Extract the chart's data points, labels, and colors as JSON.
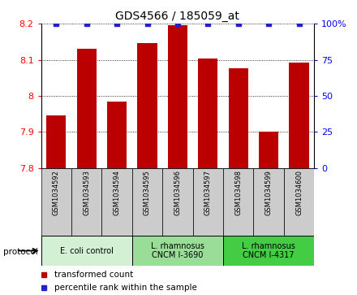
{
  "title": "GDS4566 / 185059_at",
  "samples": [
    "GSM1034592",
    "GSM1034593",
    "GSM1034594",
    "GSM1034595",
    "GSM1034596",
    "GSM1034597",
    "GSM1034598",
    "GSM1034599",
    "GSM1034600"
  ],
  "bar_values": [
    7.945,
    8.13,
    7.985,
    8.145,
    8.195,
    8.103,
    8.077,
    7.902,
    8.093
  ],
  "ylim": [
    7.8,
    8.2
  ],
  "yticks_left": [
    7.8,
    7.9,
    8.0,
    8.1,
    8.2
  ],
  "ytick_labels_left": [
    "7.8",
    "7.9",
    "8",
    "8.1",
    "8.2"
  ],
  "yticks_right": [
    0,
    25,
    50,
    75,
    100
  ],
  "ytick_labels_right": [
    "0",
    "25",
    "50",
    "75",
    "100%"
  ],
  "bar_color": "#bb0000",
  "dot_color": "#2222cc",
  "bar_bottom": 7.8,
  "group_colors": [
    "#d4f0d4",
    "#99dd99",
    "#44cc44"
  ],
  "group_labels": [
    "E. coli control",
    "L. rhamnosus\nCNCM I-3690",
    "L. rhamnosus\nCNCM I-4317"
  ],
  "group_ranges": [
    [
      0,
      2
    ],
    [
      3,
      5
    ],
    [
      6,
      8
    ]
  ],
  "sample_cell_color": "#cccccc",
  "legend_red_label": "transformed count",
  "legend_blue_label": "percentile rank within the sample",
  "protocol_label": "protocol"
}
